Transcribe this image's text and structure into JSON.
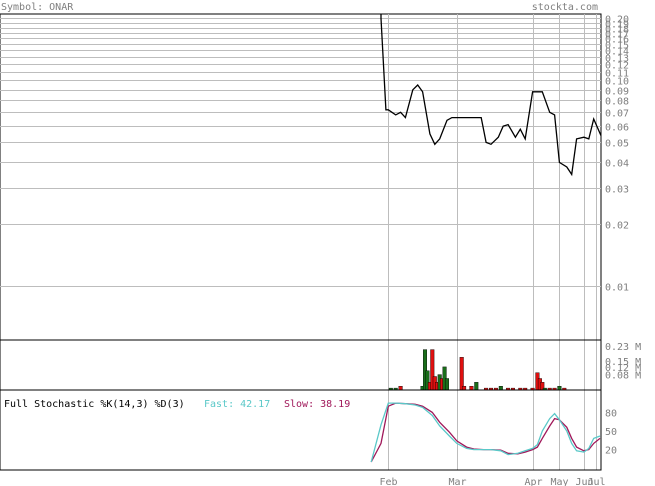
{
  "header": {
    "symbol_label": "Symbol: ONAR",
    "site": "stockta.com"
  },
  "colors": {
    "price_line": "#000000",
    "volume_up": "#1a6e1a",
    "volume_down": "#e01010",
    "fast_line": "#5ac8c8",
    "slow_line": "#a0185a",
    "axis_text": "#7f7f7f",
    "grid": "#bdbdbd"
  },
  "chart_data": [
    {
      "type": "line",
      "name": "price",
      "scale": "log",
      "ylim": [
        0.0055,
        0.21
      ],
      "y_ticks": [
        0.2,
        0.19,
        0.18,
        0.17,
        0.16,
        0.15,
        0.14,
        0.13,
        0.12,
        0.11,
        0.1,
        0.09,
        0.08,
        0.07,
        0.06,
        0.05,
        0.04,
        0.03,
        0.02,
        0.01
      ],
      "y_tick_labels": [
        "0.20",
        "0.19",
        "0.18",
        "0.17",
        "0.16",
        "0.15",
        "0.14",
        "0.13",
        "0.12",
        "0.11",
        "0.10",
        "0.09",
        "0.08",
        "0.07",
        "0.06",
        "0.05",
        "0.04",
        "0.03",
        "0.02",
        "0.01"
      ],
      "x": [
        "Jan 29",
        "Jan 31",
        "Feb 1",
        "Feb 4",
        "Feb 6",
        "Feb 8",
        "Feb 11",
        "Feb 13",
        "Feb 15",
        "Feb 18",
        "Feb 20",
        "Feb 22",
        "Feb 25",
        "Feb 27",
        "Mar 1",
        "Mar 4",
        "Mar 6",
        "Mar 8",
        "Mar 11",
        "Mar 13",
        "Mar 15",
        "Mar 18",
        "Mar 20",
        "Mar 22",
        "Mar 25",
        "Mar 27",
        "Mar 29",
        "Apr 1",
        "Apr 3",
        "Apr 5",
        "Apr 8",
        "Apr 10",
        "Apr 12",
        "Apr 15",
        "Apr 17",
        "Apr 19",
        "Apr 22",
        "Apr 24",
        "Apr 26",
        "Apr 29"
      ],
      "values": [
        0.2,
        0.072,
        0.072,
        0.068,
        0.07,
        0.066,
        0.09,
        0.095,
        0.088,
        0.055,
        0.049,
        0.052,
        0.064,
        0.066,
        0.066,
        0.066,
        0.066,
        0.066,
        0.066,
        0.05,
        0.049,
        0.053,
        0.06,
        0.061,
        0.053,
        0.058,
        0.052,
        0.088,
        0.088,
        0.088,
        0.07,
        0.068,
        0.04,
        0.038,
        0.035,
        0.052,
        0.053,
        0.052,
        0.065,
        0.054
      ]
    },
    {
      "type": "bar",
      "name": "volume",
      "ylim": [
        0,
        0.26
      ],
      "unit": "M",
      "y_ticks": [
        0.23,
        0.15,
        0.12,
        0.08
      ],
      "y_tick_labels": [
        "0.23 M",
        "0.15 M",
        "0.12 M",
        "0.08 M"
      ],
      "bars": [
        {
          "d": "Feb 2",
          "v": 0.01,
          "c": "up"
        },
        {
          "d": "Feb 4",
          "v": 0.01,
          "c": "up"
        },
        {
          "d": "Feb 6",
          "v": 0.02,
          "c": "down"
        },
        {
          "d": "Feb 15",
          "v": 0.02,
          "c": "up"
        },
        {
          "d": "Feb 16",
          "v": 0.21,
          "c": "up"
        },
        {
          "d": "Feb 17",
          "v": 0.1,
          "c": "up"
        },
        {
          "d": "Feb 18",
          "v": 0.04,
          "c": "down"
        },
        {
          "d": "Feb 19",
          "v": 0.21,
          "c": "down"
        },
        {
          "d": "Feb 20",
          "v": 0.07,
          "c": "down"
        },
        {
          "d": "Feb 21",
          "v": 0.04,
          "c": "down"
        },
        {
          "d": "Feb 22",
          "v": 0.08,
          "c": "up"
        },
        {
          "d": "Feb 23",
          "v": 0.06,
          "c": "down"
        },
        {
          "d": "Feb 24",
          "v": 0.12,
          "c": "up"
        },
        {
          "d": "Feb 25",
          "v": 0.06,
          "c": "up"
        },
        {
          "d": "Mar 3",
          "v": 0.17,
          "c": "down"
        },
        {
          "d": "Mar 4",
          "v": 0.02,
          "c": "down"
        },
        {
          "d": "Mar 7",
          "v": 0.02,
          "c": "down"
        },
        {
          "d": "Mar 9",
          "v": 0.04,
          "c": "up"
        },
        {
          "d": "Mar 13",
          "v": 0.01,
          "c": "down"
        },
        {
          "d": "Mar 15",
          "v": 0.01,
          "c": "down"
        },
        {
          "d": "Mar 17",
          "v": 0.01,
          "c": "down"
        },
        {
          "d": "Mar 19",
          "v": 0.02,
          "c": "up"
        },
        {
          "d": "Mar 22",
          "v": 0.01,
          "c": "down"
        },
        {
          "d": "Mar 24",
          "v": 0.01,
          "c": "down"
        },
        {
          "d": "Mar 27",
          "v": 0.01,
          "c": "down"
        },
        {
          "d": "Mar 29",
          "v": 0.01,
          "c": "down"
        },
        {
          "d": "Apr 1",
          "v": 0.01,
          "c": "down"
        },
        {
          "d": "Apr 3",
          "v": 0.09,
          "c": "down"
        },
        {
          "d": "Apr 4",
          "v": 0.06,
          "c": "down"
        },
        {
          "d": "Apr 5",
          "v": 0.04,
          "c": "down"
        },
        {
          "d": "Apr 6",
          "v": 0.01,
          "c": "up"
        },
        {
          "d": "Apr 8",
          "v": 0.01,
          "c": "down"
        },
        {
          "d": "Apr 10",
          "v": 0.01,
          "c": "down"
        },
        {
          "d": "Apr 12",
          "v": 0.02,
          "c": "up"
        },
        {
          "d": "Apr 14",
          "v": 0.01,
          "c": "down"
        }
      ]
    },
    {
      "type": "line",
      "name": "Full Stochastic %K(14,3) %D(3)",
      "title": "Full Stochastic %K(14,3) %D(3)",
      "ylim": [
        0,
        100
      ],
      "y_ticks": [
        80,
        50,
        20
      ],
      "y_tick_labels": [
        "80",
        "50",
        "20"
      ],
      "fast_label": "Fast: 42.17",
      "slow_label": "Slow: 38.19",
      "x": [
        "Jan 25",
        "Jan 29",
        "Feb 1",
        "Feb 4",
        "Feb 8",
        "Feb 12",
        "Feb 15",
        "Feb 19",
        "Feb 22",
        "Feb 26",
        "Mar 1",
        "Mar 5",
        "Mar 8",
        "Mar 12",
        "Mar 15",
        "Mar 19",
        "Mar 22",
        "Mar 26",
        "Mar 29",
        "Apr 1",
        "Apr 3",
        "Apr 5",
        "Apr 8",
        "Apr 10",
        "Apr 12",
        "Apr 15",
        "Apr 17",
        "Apr 19",
        "Apr 22",
        "Apr 24",
        "Apr 26",
        "Apr 29"
      ],
      "series": [
        {
          "name": "Fast",
          "values": [
            0,
            60,
            95,
            95,
            94,
            92,
            88,
            75,
            58,
            42,
            30,
            22,
            20,
            20,
            20,
            18,
            12,
            14,
            18,
            22,
            28,
            50,
            70,
            78,
            68,
            50,
            30,
            18,
            16,
            22,
            38,
            42
          ]
        },
        {
          "name": "Slow",
          "values": [
            0,
            30,
            90,
            95,
            94,
            93,
            90,
            80,
            64,
            48,
            34,
            24,
            21,
            20,
            20,
            19,
            14,
            13,
            16,
            20,
            24,
            38,
            58,
            70,
            68,
            56,
            38,
            24,
            18,
            20,
            30,
            38
          ]
        }
      ]
    }
  ],
  "x_axis": {
    "labels": [
      {
        "text": "Feb",
        "date": "Feb 1"
      },
      {
        "text": "Mar",
        "date": "Mar 1"
      },
      {
        "text": "Apr",
        "date": "Apr 1"
      },
      {
        "text": "May",
        "date": "Apr 12"
      },
      {
        "text": "Jun",
        "date": "Apr 22"
      },
      {
        "text": "Jul",
        "date": "Apr 27"
      }
    ]
  }
}
